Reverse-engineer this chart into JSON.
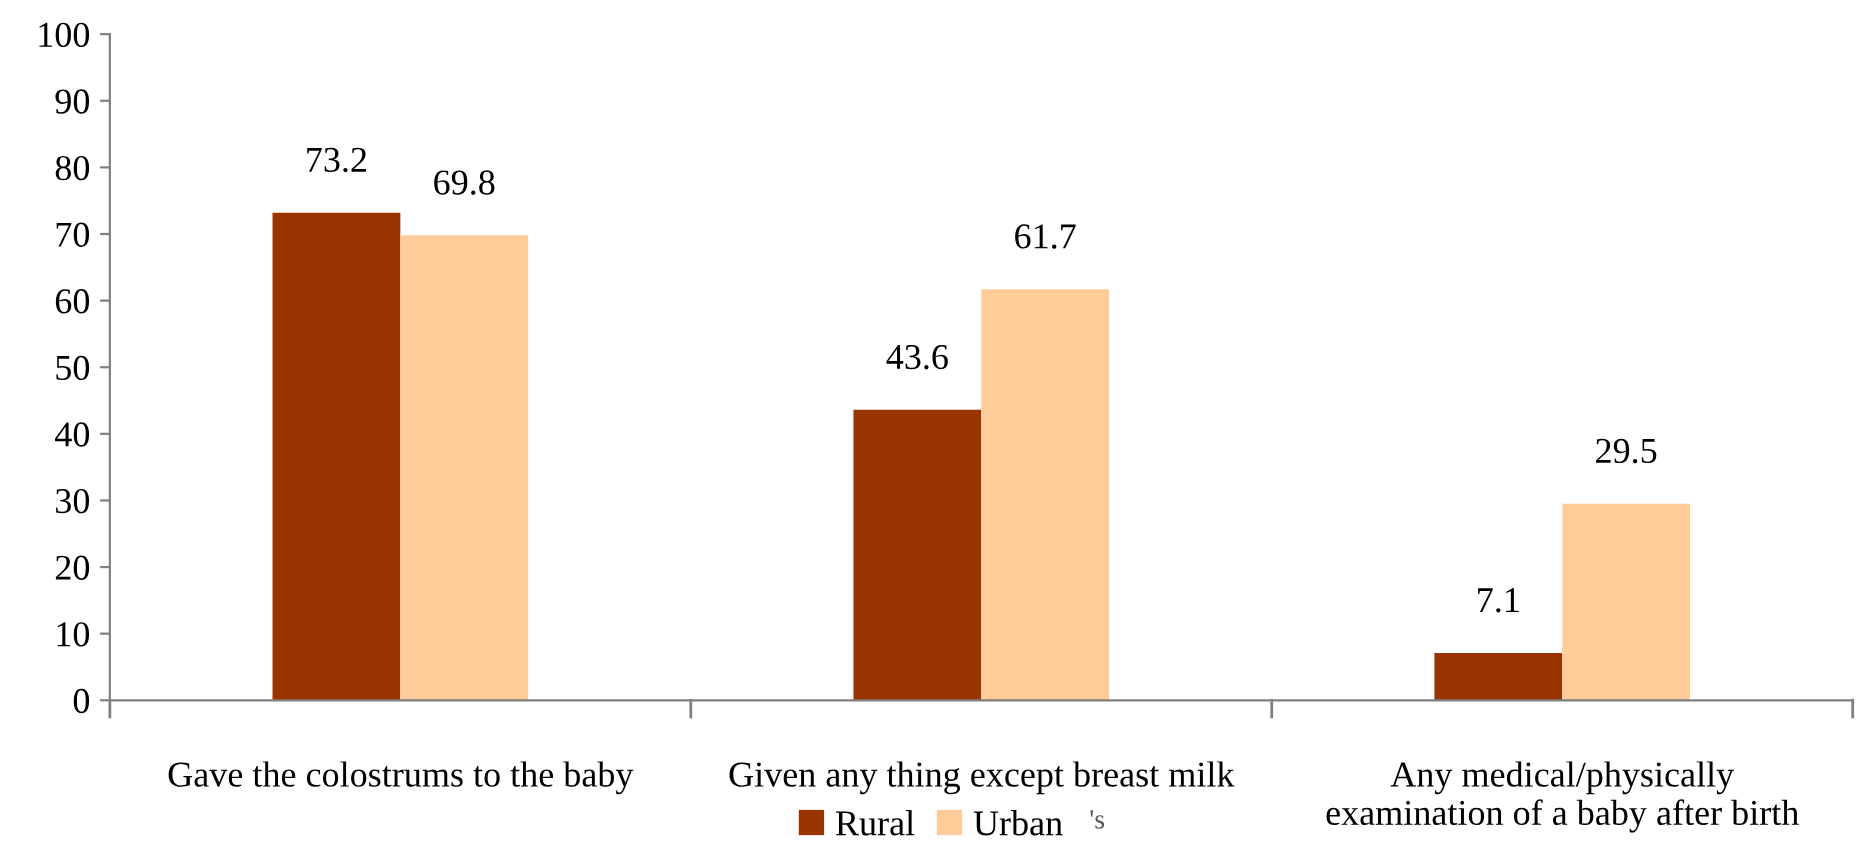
{
  "chart_data": {
    "type": "bar",
    "categories": [
      "Gave the colostrums to the baby",
      "Given any thing except breast milk",
      "Any medical/physically\nexamination of a baby after birth"
    ],
    "series": [
      {
        "name": "Rural",
        "color": "#993300",
        "values": [
          73.2,
          43.6,
          7.1
        ]
      },
      {
        "name": "Urban",
        "color": "#ffcc99",
        "values": [
          69.8,
          61.7,
          29.5
        ]
      }
    ],
    "ylim": [
      0,
      100
    ],
    "yticks": [
      0,
      10,
      20,
      30,
      40,
      50,
      60,
      70,
      80,
      90,
      100
    ],
    "data_labels": true,
    "grid": false,
    "legend": "bottom",
    "annotations": [
      "'s"
    ]
  }
}
